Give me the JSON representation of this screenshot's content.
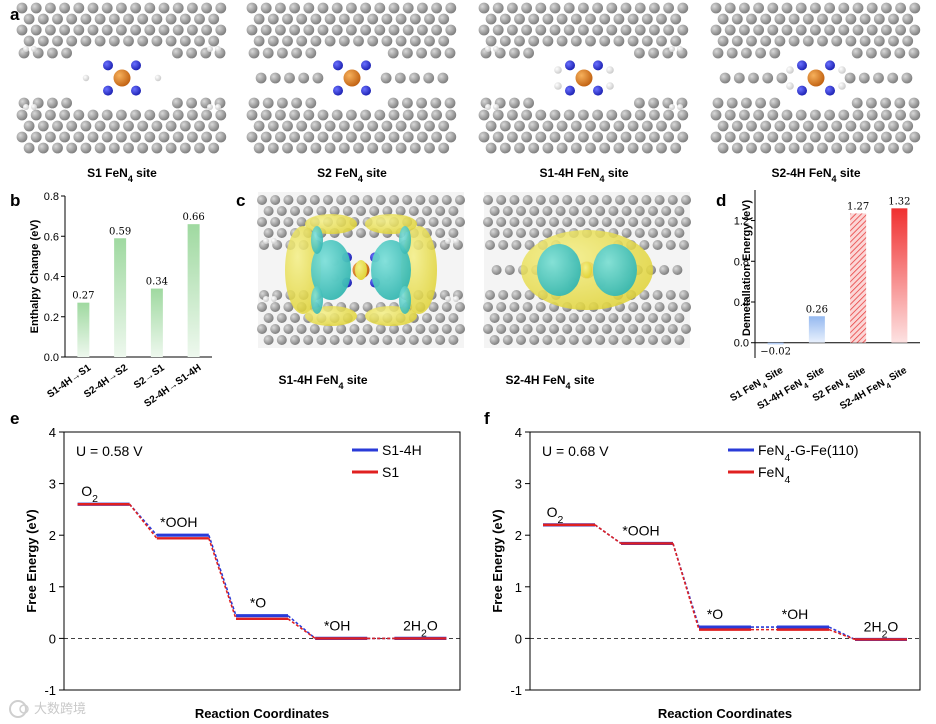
{
  "colors": {
    "carbon": "#8f8f8f",
    "nitrogen": "#2a2fd6",
    "iron": "#e07d1e",
    "hydrogen": "#e6e6e6",
    "charge_yellow": "#e9e04a",
    "charge_cyan": "#47c9c3",
    "bar_green": "#9fd9a0",
    "bar_blue": "#9ebff0",
    "bar_red": "#f04848",
    "line_blue": "#2a3bd8",
    "line_red": "#e02020"
  },
  "panels": {
    "a": {
      "letter": "a",
      "sites": [
        {
          "name": "S1",
          "fe": "FeN",
          "sub": "4",
          "suffix": " site",
          "variant": "S1"
        },
        {
          "name": "S2",
          "fe": "FeN",
          "sub": "4",
          "suffix": " site",
          "variant": "S2"
        },
        {
          "name": "S1-4H",
          "fe": "FeN",
          "sub": "4",
          "suffix": " site",
          "variant": "S1-4H"
        },
        {
          "name": "S2-4H",
          "fe": "FeN",
          "sub": "4",
          "suffix": " site",
          "variant": "S2-4H"
        }
      ]
    },
    "b": {
      "letter": "b"
    },
    "c": {
      "letter": "c",
      "sites": [
        {
          "name": "S1-4H",
          "fe": "FeN",
          "sub": "4",
          "suffix": " site"
        },
        {
          "name": "S2-4H",
          "fe": "FeN",
          "sub": "4",
          "suffix": " site"
        }
      ]
    },
    "d": {
      "letter": "d"
    },
    "e": {
      "letter": "e"
    },
    "f": {
      "letter": "f"
    }
  },
  "watermark": "大数跨境",
  "chart_data": [
    {
      "panel": "b",
      "type": "bar",
      "ylabel": "Enthalpy Change (eV)",
      "categories": [
        "S1-4H→S1",
        "S2-4H→S2",
        "S2→S1",
        "S2-4H→S1-4H"
      ],
      "values": [
        0.27,
        0.59,
        0.34,
        0.66
      ],
      "data_labels": [
        "0.27",
        "0.59",
        "0.34",
        "0.66"
      ],
      "ylim": [
        0,
        0.8
      ],
      "yticks": [
        "0.0",
        "0.2",
        "0.4",
        "0.6",
        "0.8"
      ],
      "color": "#9fd9a0"
    },
    {
      "panel": "d",
      "type": "bar",
      "ylabel": "Demetallation Energy (eV)",
      "categories": [
        "S1 FeN4 Site",
        "S1-4H FeN4 Site",
        "S2 FeN4 Site",
        "S2-4H FeN4 Site"
      ],
      "values": [
        -0.02,
        0.26,
        1.27,
        1.32
      ],
      "data_labels": [
        "−0.02",
        "0.26",
        "1.27",
        "1.32"
      ],
      "ylim": [
        -0.15,
        1.5
      ],
      "yticks": [
        "0.0",
        "0.4",
        "0.8",
        "1.2"
      ],
      "ytick_values": [
        0,
        0.4,
        0.8,
        1.2
      ]
    },
    {
      "panel": "e",
      "type": "line",
      "annotation": "U = 0.58 V",
      "xlabel": "Reaction Coordinates",
      "ylabel": "Free Energy (eV)",
      "ylim": [
        -1,
        4
      ],
      "yticks": [
        "-1",
        "0",
        "1",
        "2",
        "3",
        "4"
      ],
      "states": [
        "O2",
        "*OOH",
        "*O",
        "*OH",
        "2H2O"
      ],
      "series": [
        {
          "name": "S1-4H",
          "values": [
            2.6,
            2.0,
            0.44,
            0.0,
            0.0
          ]
        },
        {
          "name": "S1",
          "values": [
            2.6,
            1.94,
            0.38,
            0.0,
            0.0
          ]
        }
      ]
    },
    {
      "panel": "f",
      "type": "line",
      "annotation": "U = 0.68 V",
      "xlabel": "Reaction Coordinates",
      "ylabel": "Free Energy (eV)",
      "ylim": [
        -1,
        4
      ],
      "yticks": [
        "-1",
        "0",
        "1",
        "2",
        "3",
        "4"
      ],
      "states": [
        "O2",
        "*OOH",
        "*O",
        "*OH",
        "2H2O"
      ],
      "series": [
        {
          "name": "FeN4-G-Fe(110)",
          "values": [
            2.2,
            1.84,
            0.22,
            0.22,
            -0.02
          ]
        },
        {
          "name": "FeN4",
          "values": [
            2.2,
            1.84,
            0.17,
            0.17,
            -0.02
          ]
        }
      ]
    }
  ]
}
